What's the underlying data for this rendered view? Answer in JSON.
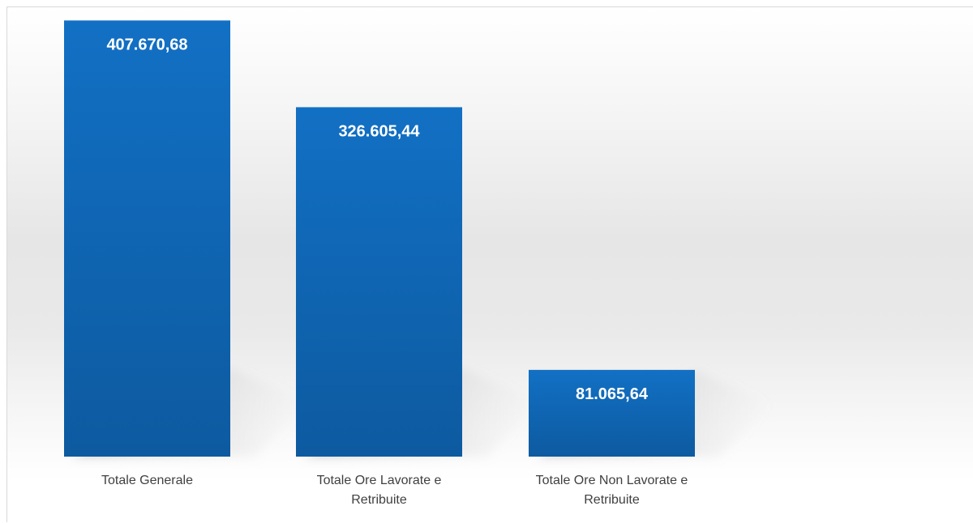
{
  "chart_data": {
    "type": "bar",
    "categories": [
      [
        "Totale Generale"
      ],
      [
        "Totale Ore Lavorate e",
        "Retribuite"
      ],
      [
        "Totale Ore Non Lavorate e",
        "Retribuite"
      ]
    ],
    "values": [
      407670.68,
      326605.44,
      81065.64
    ],
    "data_labels": [
      "407.670,68",
      "326.605,44",
      "81.065,64"
    ],
    "title": "",
    "xlabel": "",
    "ylabel": "",
    "ylim": [
      0,
      420000
    ],
    "grid": false,
    "legend": "none",
    "bar_color": "#1270c4",
    "bar_color_dark": "#0d5aa0"
  }
}
